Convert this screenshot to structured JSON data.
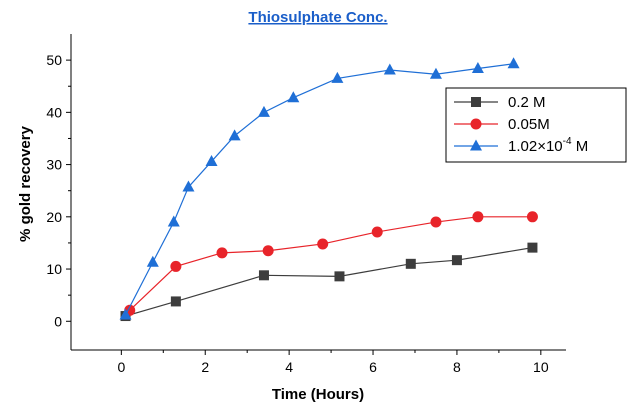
{
  "chart_data": {
    "type": "line",
    "title": "Thiosulphate Conc.",
    "xlabel": "Time (Hours)",
    "ylabel": "% gold recovery",
    "xlim": [
      -1.2,
      10.6
    ],
    "ylim": [
      -5.5,
      55
    ],
    "x_ticks": [
      0,
      2,
      4,
      6,
      8,
      10
    ],
    "y_ticks": [
      0,
      10,
      20,
      30,
      40,
      50
    ],
    "grid": false,
    "legend_position": "right",
    "series": [
      {
        "name": "0.2 M",
        "color": "#3d3d3d",
        "marker": "square",
        "x": [
          0.1,
          1.3,
          3.4,
          5.2,
          6.9,
          8.0,
          9.8
        ],
        "y": [
          1.0,
          3.8,
          8.8,
          8.6,
          11.0,
          11.7,
          14.1
        ]
      },
      {
        "name": "0.05M",
        "color": "#e8242a",
        "marker": "circle",
        "x": [
          0.2,
          1.3,
          2.4,
          3.5,
          4.8,
          6.1,
          7.5,
          8.5,
          9.8
        ],
        "y": [
          2.1,
          10.5,
          13.1,
          13.5,
          14.8,
          17.1,
          19.0,
          20.0,
          20.0
        ]
      },
      {
        "name": "1.02×10⁻⁴ M",
        "legend_base": "1.02×10",
        "legend_sup": "-4",
        "legend_unit": "M",
        "color": "#1f6fd6",
        "marker": "triangle",
        "x": [
          0.1,
          0.75,
          1.25,
          1.6,
          2.15,
          2.7,
          3.4,
          4.1,
          5.15,
          6.4,
          7.5,
          8.5,
          9.35
        ],
        "y": [
          1.2,
          11.3,
          19.0,
          25.7,
          30.6,
          35.5,
          40.0,
          42.8,
          46.5,
          48.1,
          47.3,
          48.4,
          49.3
        ]
      }
    ]
  }
}
